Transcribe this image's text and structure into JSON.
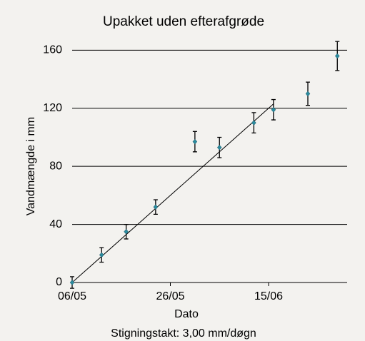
{
  "chart_data": {
    "type": "scatter",
    "title": "Upakket uden efterafgrøde",
    "x_label": "Dato",
    "y_label": "Vandmængde i mm",
    "annotation": "Stigningstakt: 3,00 mm/døgn",
    "x": [
      "06/05",
      "12/05",
      "17/05",
      "23/05",
      "31/05",
      "05/06",
      "12/06",
      "16/06",
      "23/06",
      "29/06"
    ],
    "values": [
      0,
      19,
      35,
      52,
      97,
      93,
      110,
      119,
      130,
      156
    ],
    "errors": [
      4,
      5,
      5,
      5,
      7,
      7,
      7,
      7,
      8,
      10
    ],
    "color": "#2b8c9e",
    "trend": {
      "x": [
        "06/05",
        "16/06"
      ],
      "values": [
        0,
        123
      ]
    },
    "xlim": [
      "06/05",
      "01/07"
    ],
    "xticks": [
      "06/05",
      "26/05",
      "15/06"
    ],
    "ylim": [
      0,
      170
    ],
    "yticks": [
      0,
      40,
      80,
      120,
      160
    ],
    "grid": true
  }
}
